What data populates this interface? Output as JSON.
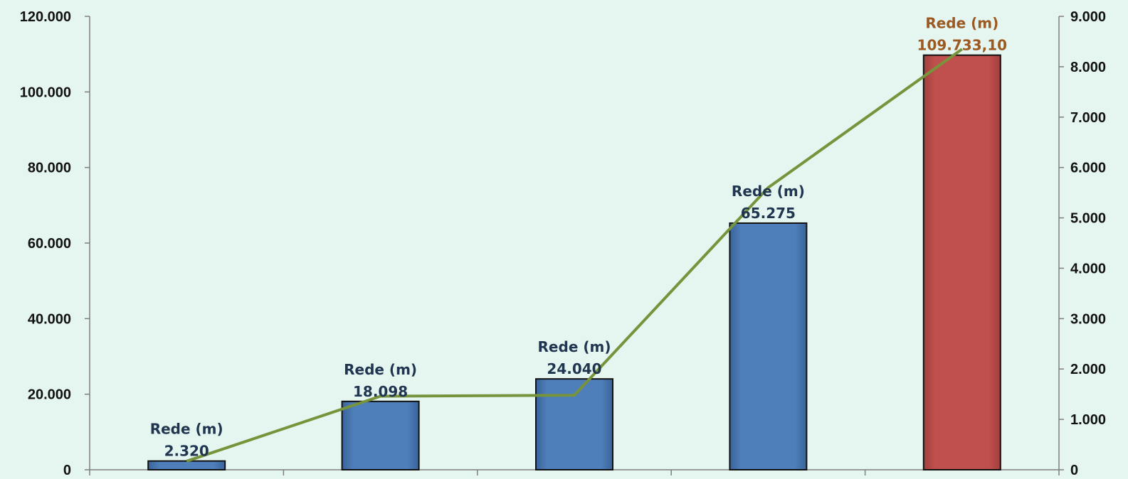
{
  "chart_data": {
    "type": "bar",
    "categories": [
      "",
      "",
      "",
      "",
      ""
    ],
    "series": [
      {
        "kind": "bar",
        "axis": "left",
        "values": [
          2320,
          18098,
          24040,
          65275,
          109733.1
        ],
        "labels": [
          [
            "Rede (m)",
            "2.320"
          ],
          [
            "Rede (m)",
            "18.098"
          ],
          [
            "Rede (m)",
            "24.040"
          ],
          [
            "Rede (m)",
            "65.275"
          ],
          [
            "Rede (m)",
            "109.733,10"
          ]
        ],
        "colors": [
          "#4f7fba",
          "#4f7fba",
          "#4f7fba",
          "#4f7fba",
          "#c0504d"
        ],
        "label_colors": [
          "#1f3550",
          "#1f3550",
          "#1f3550",
          "#1f3550",
          "#9c5a22"
        ]
      },
      {
        "kind": "line",
        "axis": "right",
        "values": [
          170,
          1460,
          1480,
          5600,
          8350
        ],
        "color": "#77933c"
      }
    ],
    "y_left": {
      "min": 0,
      "max": 120000,
      "ticks": [
        0,
        20000,
        40000,
        60000,
        80000,
        100000,
        120000
      ],
      "tick_labels": [
        "0",
        "20.000",
        "40.000",
        "60.000",
        "80.000",
        "100.000",
        "120.000"
      ]
    },
    "y_right": {
      "min": 0,
      "max": 9000,
      "ticks": [
        0,
        1000,
        2000,
        3000,
        4000,
        5000,
        6000,
        7000,
        8000,
        9000
      ],
      "tick_labels": [
        "0",
        "1.000",
        "2.000",
        "3.000",
        "4.000",
        "5.000",
        "6.000",
        "7.000",
        "8.000",
        "9.000"
      ]
    },
    "grid": false,
    "legend": "none",
    "background": "#e5f5ef"
  }
}
